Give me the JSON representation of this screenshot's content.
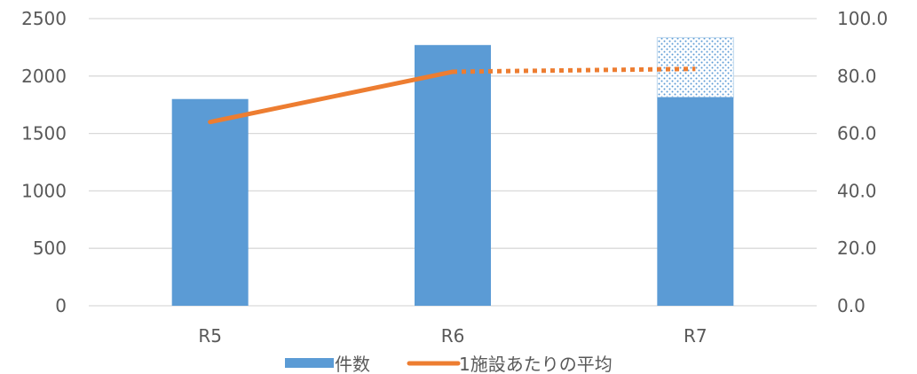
{
  "chart_data": {
    "type": "bar",
    "categories": [
      "R5",
      "R6",
      "R7"
    ],
    "series": [
      {
        "name": "件数",
        "type": "bar",
        "axis": "left",
        "values": [
          1800,
          2270,
          1815
        ],
        "projected_values": [
          null,
          null,
          2335
        ],
        "color": "#5b9bd5"
      },
      {
        "name": "1施設あたりの平均",
        "type": "line",
        "axis": "right",
        "values": [
          64.0,
          81.5,
          82.5
        ],
        "dashed_from_index": 1,
        "color": "#ed7d31"
      }
    ],
    "ylim": [
      0,
      2500
    ],
    "y_ticks": [
      "0",
      "500",
      "1000",
      "1500",
      "2000",
      "2500"
    ],
    "y2lim": [
      0,
      100
    ],
    "y2_ticks": [
      "0.0",
      "20.0",
      "40.0",
      "60.0",
      "80.0",
      "100.0"
    ],
    "grid": true,
    "legend": "bottom"
  }
}
